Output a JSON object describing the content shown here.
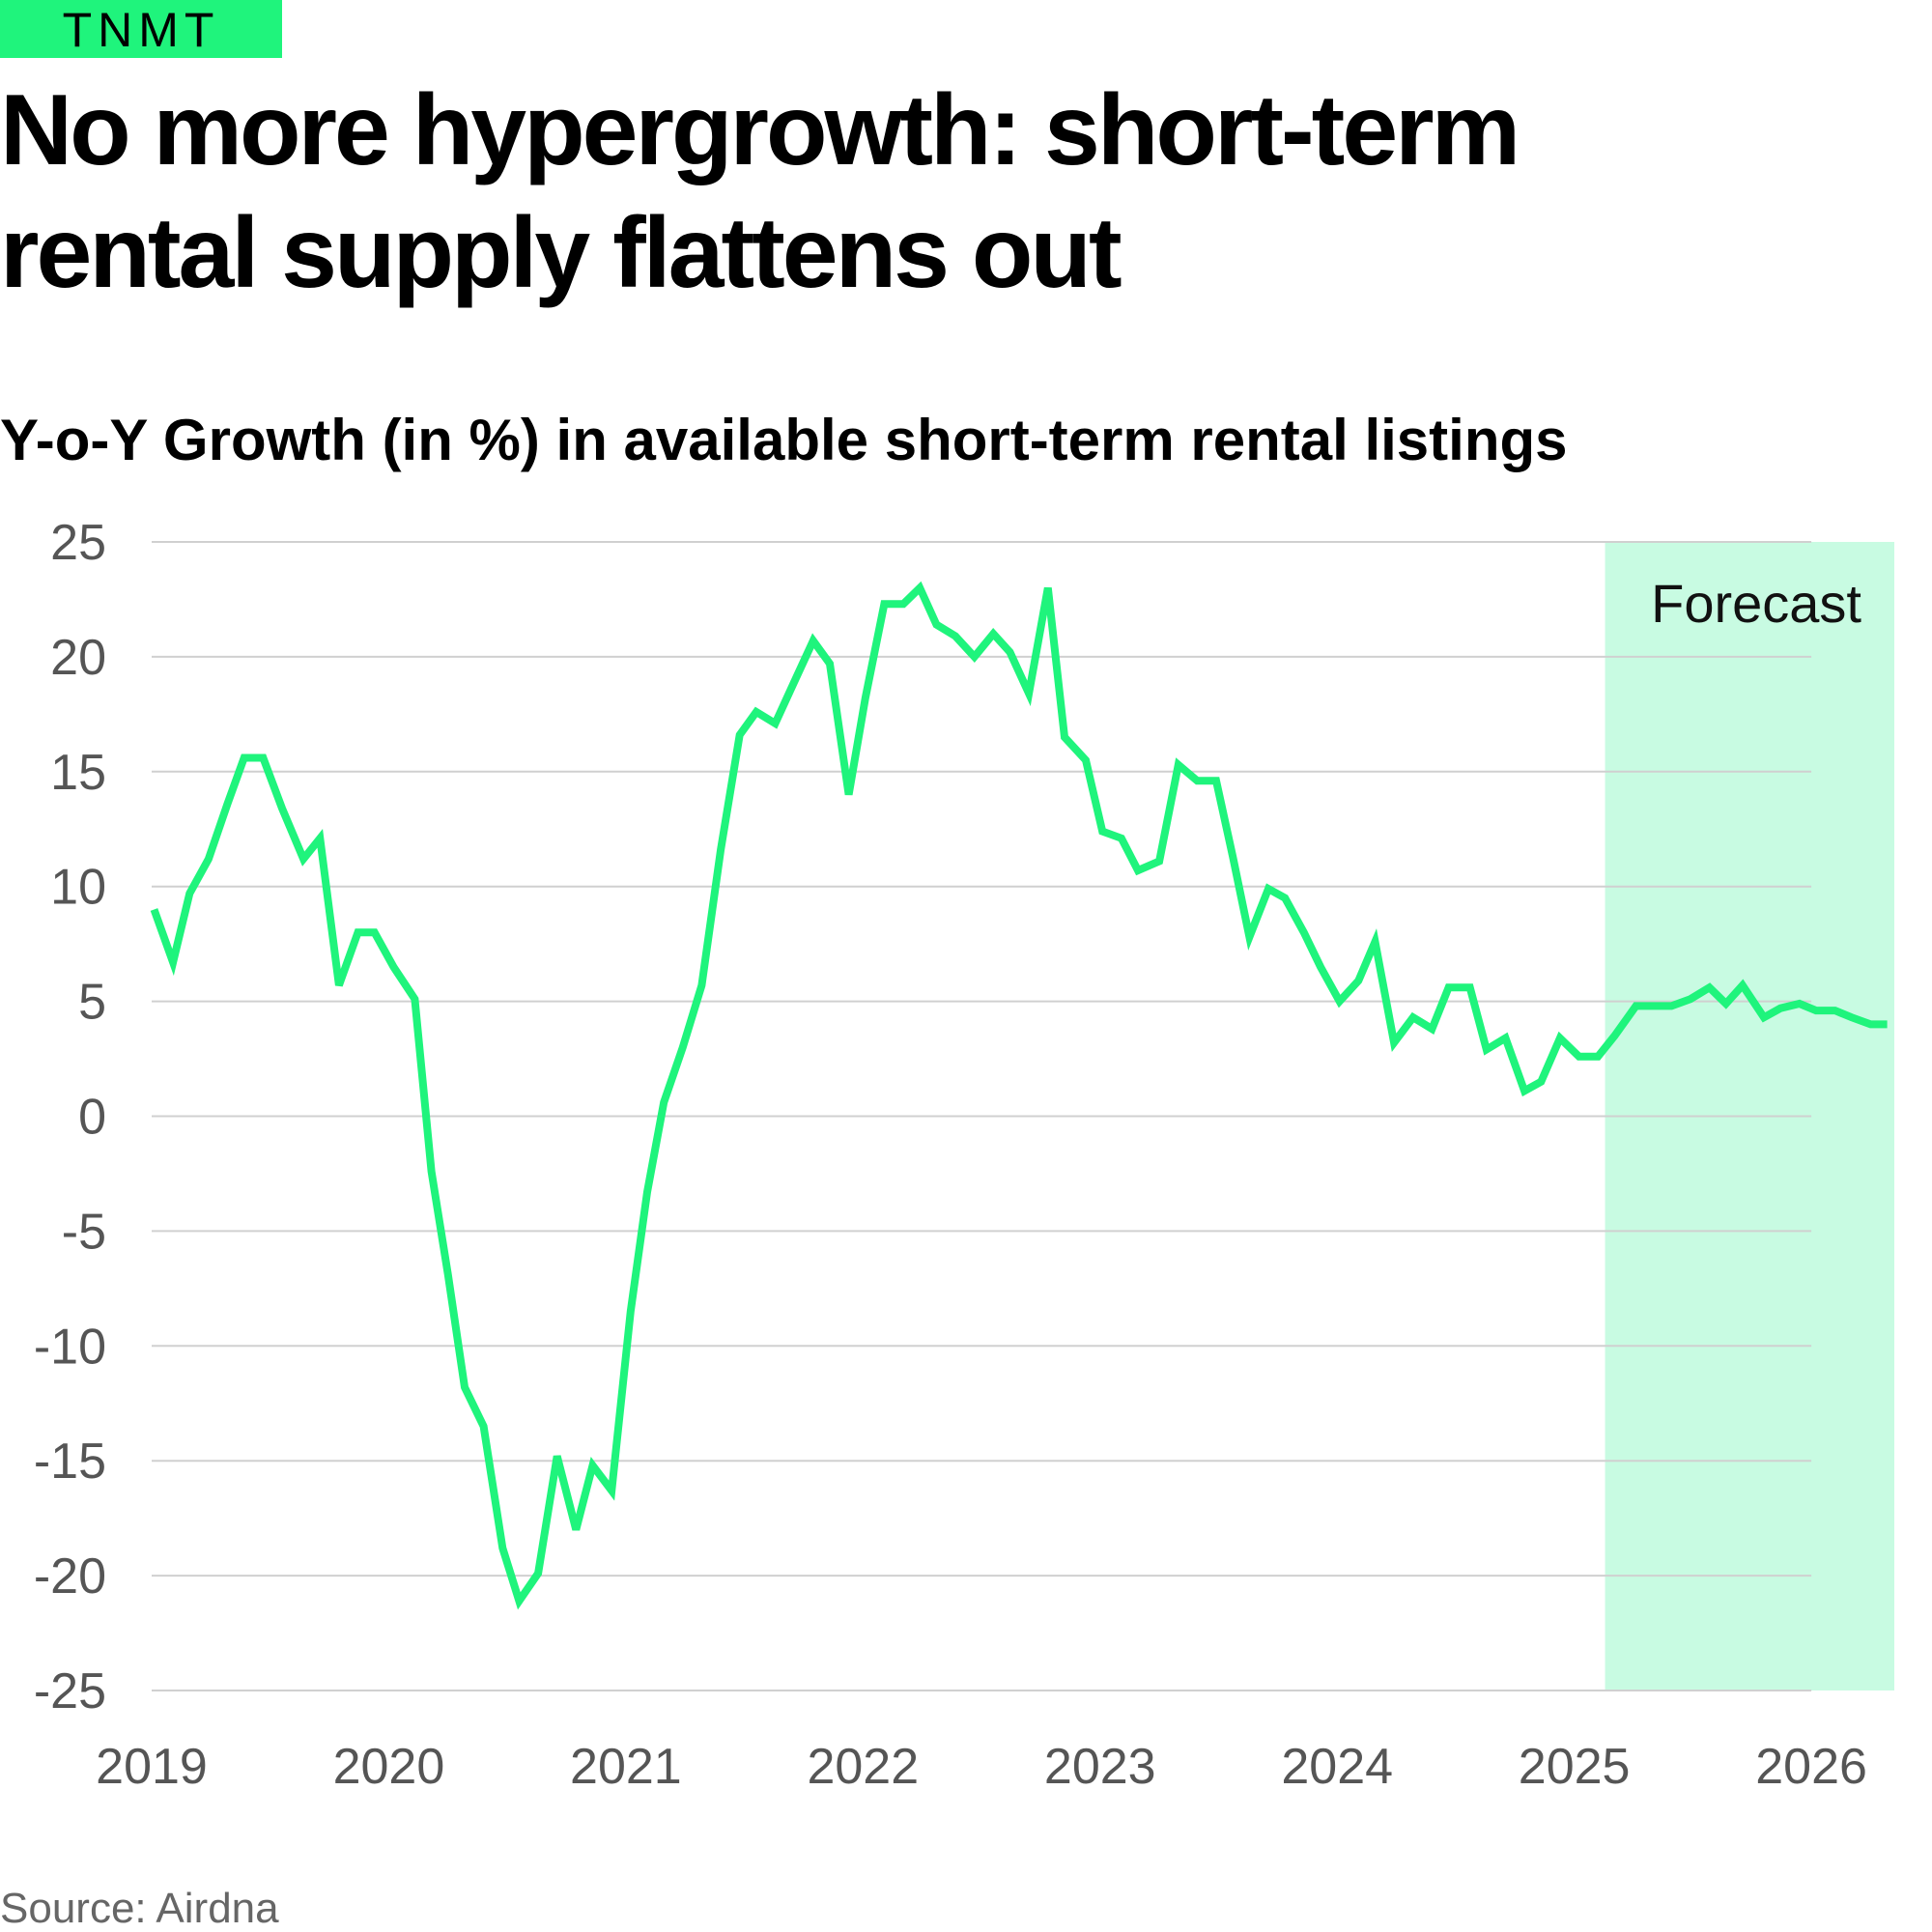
{
  "brand": "TNMT",
  "chart_data": {
    "type": "line",
    "title": [
      "No more hypergrowth: short-term",
      "rental supply flattens out"
    ],
    "subtitle": "Y-o-Y Growth (in %) in available short-term rental listings",
    "source": "Source: Airdna",
    "forecast": {
      "label": "Forecast",
      "xlim": [
        2025.13,
        2026.35
      ],
      "color": "#c8fbe2"
    },
    "x": [
      2019.01,
      2019.09,
      2019.16,
      2019.24,
      2019.32,
      2019.39,
      2019.47,
      2019.55,
      2019.64,
      2019.71,
      2019.79,
      2019.87,
      2019.94,
      2020.02,
      2020.11,
      2020.18,
      2020.25,
      2020.32,
      2020.4,
      2020.48,
      2020.55,
      2020.63,
      2020.71,
      2020.79,
      2020.86,
      2020.94,
      2021.02,
      2021.09,
      2021.16,
      2021.24,
      2021.32,
      2021.4,
      2021.48,
      2021.55,
      2021.63,
      2021.71,
      2021.79,
      2021.86,
      2021.94,
      2022.01,
      2022.09,
      2022.17,
      2022.24,
      2022.31,
      2022.39,
      2022.47,
      2022.55,
      2022.62,
      2022.7,
      2022.78,
      2022.85,
      2022.94,
      2023.01,
      2023.09,
      2023.16,
      2023.25,
      2023.33,
      2023.41,
      2023.49,
      2023.56,
      2023.63,
      2023.71,
      2023.78,
      2023.86,
      2023.93,
      2024.01,
      2024.09,
      2024.16,
      2024.24,
      2024.32,
      2024.4,
      2024.47,
      2024.56,
      2024.63,
      2024.71,
      2024.79,
      2024.86,
      2024.94,
      2025.02,
      2025.1,
      2025.17,
      2025.26,
      2025.33,
      2025.41,
      2025.49,
      2025.57,
      2025.64,
      2025.71,
      2025.8,
      2025.87,
      2025.95,
      2026.02,
      2026.1,
      2026.17,
      2026.25,
      2026.32
    ],
    "series": [
      {
        "name": "Y-o-Y Growth",
        "color": "#1ff47c",
        "values": [
          9.0,
          6.7,
          9.7,
          11.2,
          13.6,
          15.6,
          15.6,
          13.4,
          11.2,
          12.1,
          5.7,
          8.0,
          8.0,
          6.5,
          5.1,
          -2.4,
          -6.9,
          -11.8,
          -13.5,
          -18.8,
          -21.1,
          -19.9,
          -14.8,
          -18.0,
          -15.2,
          -16.3,
          -8.5,
          -3.3,
          0.6,
          3.0,
          5.7,
          11.6,
          16.6,
          17.6,
          17.1,
          18.9,
          20.7,
          19.7,
          14.0,
          18.2,
          22.3,
          22.3,
          23.0,
          21.4,
          20.9,
          20.0,
          21.0,
          20.2,
          18.4,
          23.0,
          16.5,
          15.5,
          12.4,
          12.1,
          10.7,
          11.1,
          15.3,
          14.6,
          14.6,
          11.3,
          7.8,
          9.9,
          9.5,
          8.0,
          6.5,
          5.0,
          5.9,
          7.6,
          3.2,
          4.3,
          3.8,
          5.6,
          5.6,
          2.9,
          3.4,
          1.1,
          1.5,
          3.4,
          2.6,
          2.6,
          3.5,
          4.8,
          4.8,
          4.8,
          5.1,
          5.6,
          4.9,
          5.7,
          4.3,
          4.7,
          4.9,
          4.6,
          4.6,
          4.3,
          4.0,
          4.0
        ]
      }
    ],
    "xlim": [
      2019,
      2026.35
    ],
    "xticks": [
      2019,
      2020,
      2021,
      2022,
      2023,
      2024,
      2025,
      2026
    ],
    "ylim": [
      -25,
      25
    ],
    "yticks": [
      25,
      20,
      15,
      10,
      5,
      0,
      -5,
      -10,
      -15,
      -20,
      -25
    ],
    "grid": true
  }
}
